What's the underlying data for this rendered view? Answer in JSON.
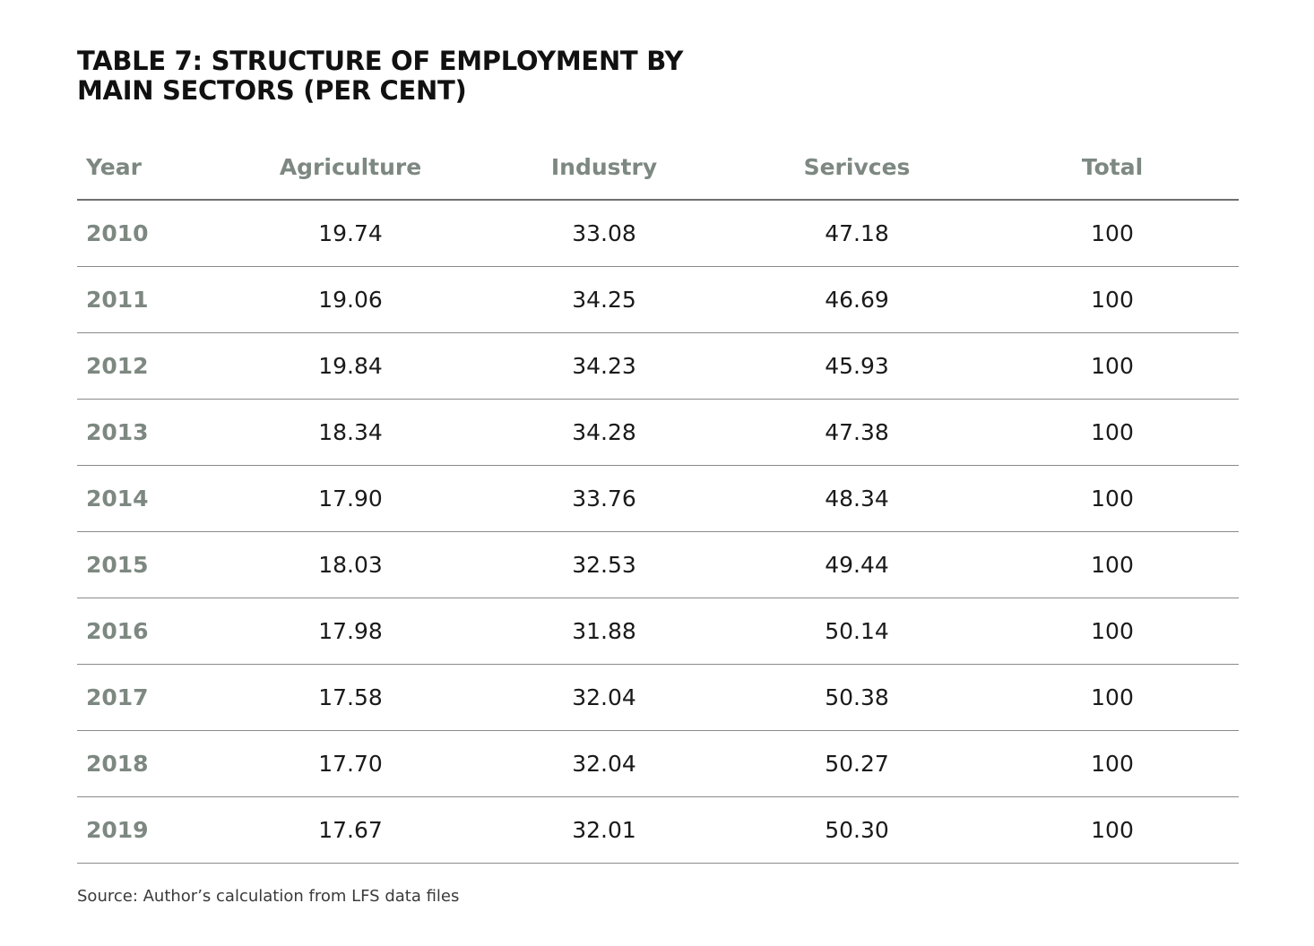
{
  "title": {
    "line1": "TABLE 7: STRUCTURE OF EMPLOYMENT BY",
    "line2": "MAIN SECTORS (PER CENT)"
  },
  "table": {
    "headers": [
      "Year",
      "Agriculture",
      "Industry",
      "Serivces",
      "Total"
    ],
    "rows": [
      [
        "2010",
        "19.74",
        "33.08",
        "47.18",
        "100"
      ],
      [
        "2011",
        "19.06",
        "34.25",
        "46.69",
        "100"
      ],
      [
        "2012",
        "19.84",
        "34.23",
        "45.93",
        "100"
      ],
      [
        "2013",
        "18.34",
        "34.28",
        "47.38",
        "100"
      ],
      [
        "2014",
        "17.90",
        "33.76",
        "48.34",
        "100"
      ],
      [
        "2015",
        "18.03",
        "32.53",
        "49.44",
        "100"
      ],
      [
        "2016",
        "17.98",
        "31.88",
        "50.14",
        "100"
      ],
      [
        "2017",
        "17.58",
        "32.04",
        "50.38",
        "100"
      ],
      [
        "2018",
        "17.70",
        "32.04",
        "50.27",
        "100"
      ],
      [
        "2019",
        "17.67",
        "32.01",
        "50.30",
        "100"
      ]
    ]
  },
  "source": "Source: Author’s calculation from LFS data files",
  "colors": {
    "header_text": "#7d8881",
    "rule": "#8a8a8a"
  }
}
